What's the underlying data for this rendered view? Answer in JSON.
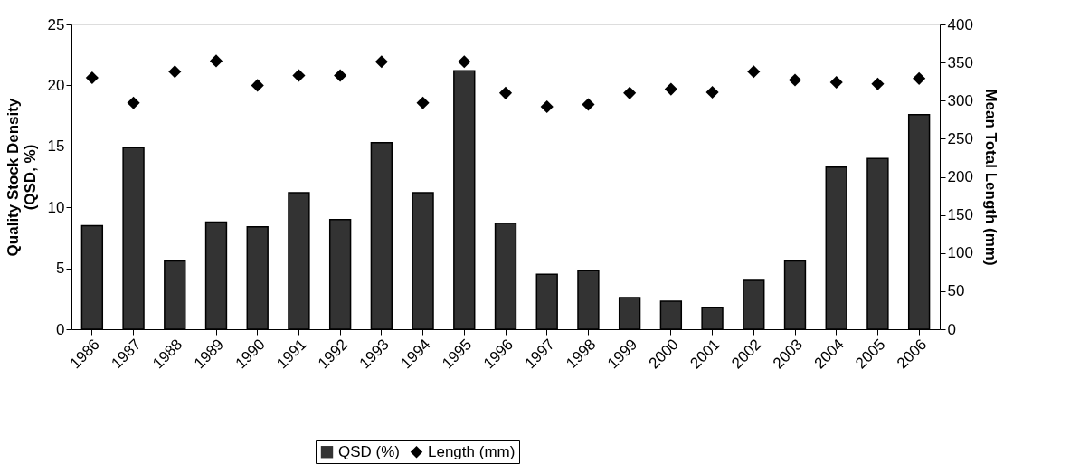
{
  "chart_data": {
    "type": "bar",
    "ylabel": "Quality Stock Density\n(QSD, %)",
    "y2label": "Mean Total Length (mm)",
    "categories": [
      "1986",
      "1987",
      "1988",
      "1989",
      "1990",
      "1991",
      "1992",
      "1993",
      "1994",
      "1995",
      "1996",
      "1997",
      "1998",
      "1999",
      "2000",
      "2001",
      "2002",
      "2003",
      "2004",
      "2005",
      "2006"
    ],
    "series": [
      {
        "name": "QSD (%)",
        "color": "#333333",
        "values": [
          8.5,
          14.9,
          5.6,
          8.8,
          8.4,
          11.2,
          9.0,
          15.3,
          11.2,
          21.2,
          8.7,
          4.5,
          4.8,
          2.6,
          2.3,
          1.8,
          4.0,
          5.6,
          13.3,
          14.0,
          17.6
        ]
      },
      {
        "name": "Length (mm)",
        "type": "scatter",
        "axis": "y2",
        "marker": "diamond",
        "color": "#000000",
        "values": [
          330,
          297,
          338,
          352,
          320,
          333,
          333,
          351,
          297,
          351,
          310,
          292,
          295,
          310,
          315,
          311,
          338,
          327,
          324,
          322,
          329
        ]
      }
    ],
    "ylim": [
      0,
      25
    ],
    "yticks": [
      0,
      5,
      10,
      15,
      20,
      25
    ],
    "y2lim": [
      0,
      400
    ],
    "y2ticks": [
      0,
      50,
      100,
      150,
      200,
      250,
      300,
      350,
      400
    ],
    "grid": false,
    "legend": "bottom"
  }
}
